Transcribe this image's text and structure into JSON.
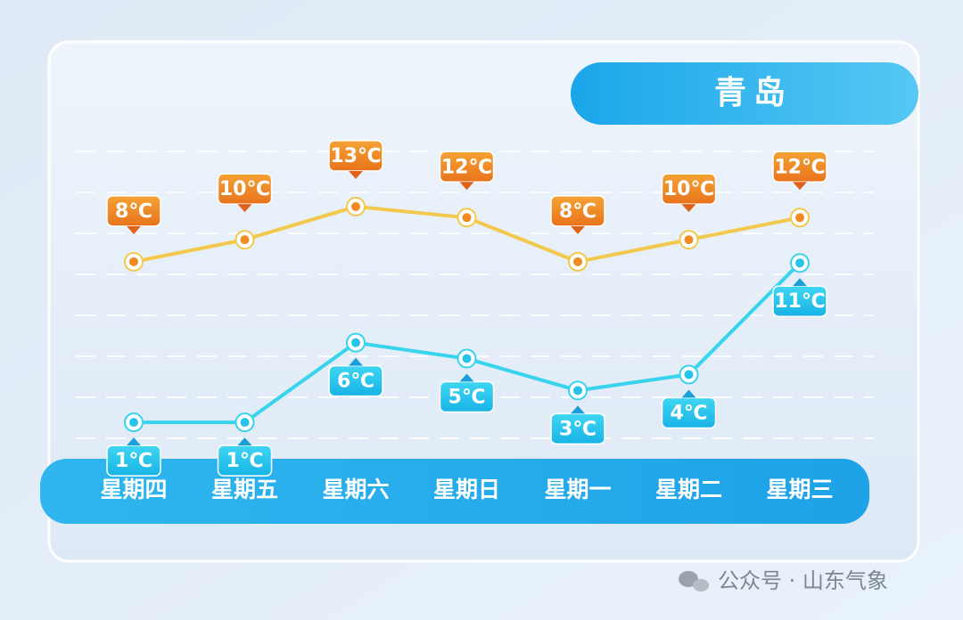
{
  "chart_data": {
    "type": "line",
    "title": "青岛",
    "categories": [
      "星期四",
      "星期五",
      "星期六",
      "星期日",
      "星期一",
      "星期二",
      "星期三"
    ],
    "series": [
      {
        "color": "#f2c94c",
        "values": [
          8,
          10,
          13,
          12,
          8,
          10,
          12
        ],
        "value_labels": [
          "8℃",
          "10℃",
          "13℃",
          "12℃",
          "8℃",
          "10℃",
          "12℃"
        ]
      },
      {
        "color": "#38d3ec",
        "axis": "y2",
        "values": [
          1,
          1,
          6,
          5,
          3,
          4,
          11
        ],
        "value_labels": [
          "1℃",
          "1℃",
          "6℃",
          "5℃",
          "3℃",
          "4℃",
          "11℃"
        ]
      }
    ],
    "ylim": [
      -8,
      18
    ],
    "y2lim": [
      0,
      18
    ],
    "source": "公众号 · 山东气象"
  }
}
